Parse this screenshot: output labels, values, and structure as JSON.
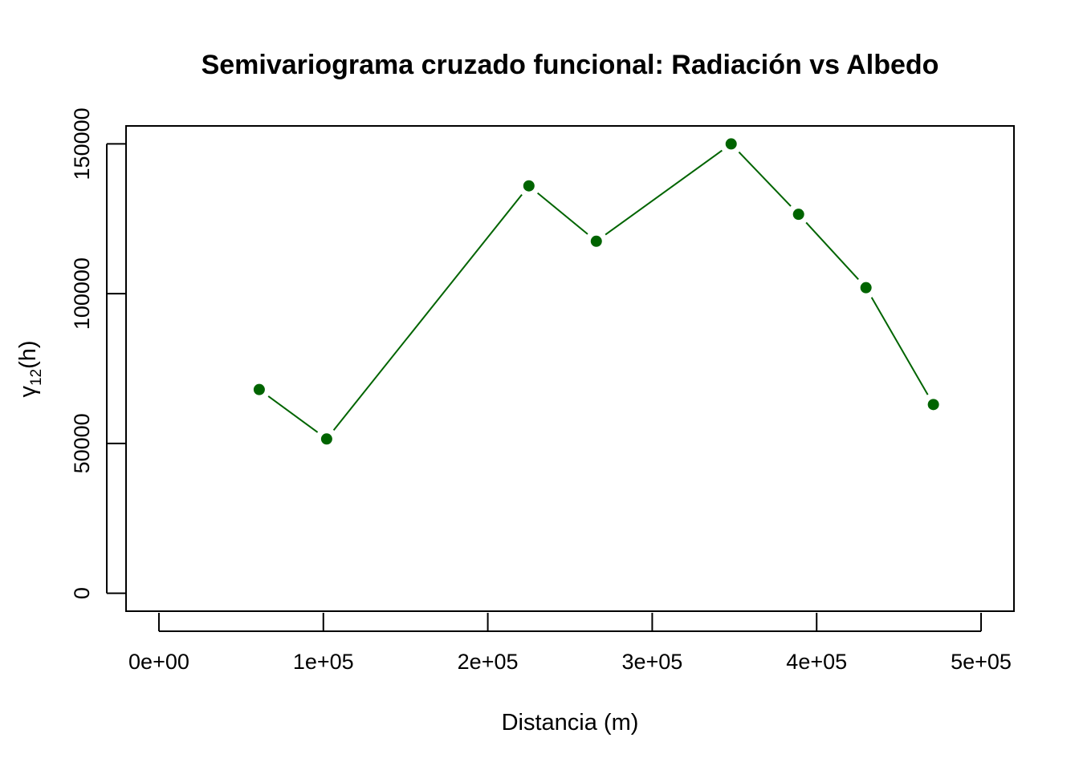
{
  "chart_data": {
    "type": "line",
    "title": "Semivariograma cruzado funcional: Radiación vs Albedo",
    "xlabel": "Distancia (m)",
    "ylabel": {
      "base": "γ",
      "subscript": "12",
      "suffix": "(h)"
    },
    "xlim": [
      -20000,
      520000
    ],
    "ylim": [
      -6000,
      156000
    ],
    "xticks": [
      {
        "value": 0,
        "label": "0e+00"
      },
      {
        "value": 100000,
        "label": "1e+05"
      },
      {
        "value": 200000,
        "label": "2e+05"
      },
      {
        "value": 300000,
        "label": "3e+05"
      },
      {
        "value": 400000,
        "label": "4e+05"
      },
      {
        "value": 500000,
        "label": "5e+05"
      }
    ],
    "yticks": [
      {
        "value": 0,
        "label": "0"
      },
      {
        "value": 50000,
        "label": "50000"
      },
      {
        "value": 100000,
        "label": "100000"
      },
      {
        "value": 150000,
        "label": "150000"
      }
    ],
    "grid": false,
    "color": "#006400",
    "series": [
      {
        "points": [
          {
            "x": 61000,
            "y": 68000
          },
          {
            "x": 102000,
            "y": 51500
          },
          {
            "x": 225000,
            "y": 136000
          },
          {
            "x": 266000,
            "y": 117500
          },
          {
            "x": 348000,
            "y": 150000
          },
          {
            "x": 389000,
            "y": 126500
          },
          {
            "x": 430000,
            "y": 102000
          },
          {
            "x": 471000,
            "y": 63000
          }
        ]
      }
    ]
  }
}
